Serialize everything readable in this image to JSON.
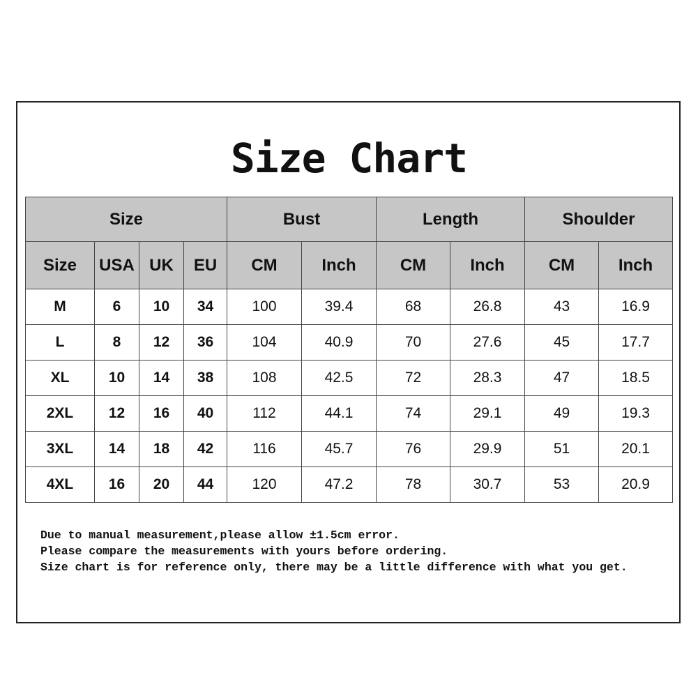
{
  "title": "Size Chart",
  "groups": [
    "Size",
    "Bust",
    "Length",
    "Shoulder"
  ],
  "subheaders": [
    "Size",
    "USA",
    "UK",
    "EU",
    "CM",
    "Inch",
    "CM",
    "Inch",
    "CM",
    "Inch"
  ],
  "rows": [
    [
      "M",
      "6",
      "10",
      "34",
      "100",
      "39.4",
      "68",
      "26.8",
      "43",
      "16.9"
    ],
    [
      "L",
      "8",
      "12",
      "36",
      "104",
      "40.9",
      "70",
      "27.6",
      "45",
      "17.7"
    ],
    [
      "XL",
      "10",
      "14",
      "38",
      "108",
      "42.5",
      "72",
      "28.3",
      "47",
      "18.5"
    ],
    [
      "2XL",
      "12",
      "16",
      "40",
      "112",
      "44.1",
      "74",
      "29.1",
      "49",
      "19.3"
    ],
    [
      "3XL",
      "14",
      "18",
      "42",
      "116",
      "45.7",
      "76",
      "29.9",
      "51",
      "20.1"
    ],
    [
      "4XL",
      "16",
      "20",
      "44",
      "120",
      "47.2",
      "78",
      "30.7",
      "53",
      "20.9"
    ]
  ],
  "notes": [
    "Due to manual measurement,please allow ±1.5cm error.",
    "Please compare the measurements with yours before ordering.",
    "Size chart is for reference only, there may be a little difference with what you get."
  ],
  "colors": {
    "header_fill": "#c6c6c6",
    "border": "#444444"
  }
}
